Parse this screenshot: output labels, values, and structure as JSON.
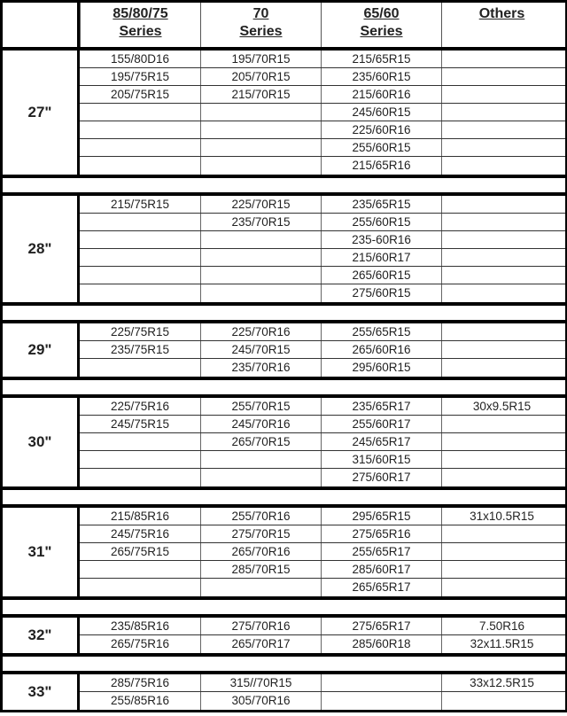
{
  "header": {
    "columns": [
      {
        "line1": "85/80/75",
        "line2": "Series"
      },
      {
        "line1": "70",
        "line2": "Series"
      },
      {
        "line1": "65/60",
        "line2": "Series"
      },
      {
        "line1": "Others",
        "line2": ""
      }
    ]
  },
  "groups": [
    {
      "size": "27\"",
      "rows": [
        [
          "155/80D16",
          "195/70R15",
          "215/65R15",
          ""
        ],
        [
          "195/75R15",
          "205/70R15",
          "235/60R15",
          ""
        ],
        [
          "205/75R15",
          "215/70R15",
          "215/60R16",
          ""
        ],
        [
          "",
          "",
          "245/60R15",
          ""
        ],
        [
          "",
          "",
          "225/60R16",
          ""
        ],
        [
          "",
          "",
          "255/60R15",
          ""
        ],
        [
          "",
          "",
          "215/65R16",
          ""
        ]
      ]
    },
    {
      "size": "28\"",
      "rows": [
        [
          "215/75R15",
          "225/70R15",
          "235/65R15",
          ""
        ],
        [
          "",
          "235/70R15",
          "255/60R15",
          ""
        ],
        [
          "",
          "",
          "235-60R16",
          ""
        ],
        [
          "",
          "",
          "215/60R17",
          ""
        ],
        [
          "",
          "",
          "265/60R15",
          ""
        ],
        [
          "",
          "",
          "275/60R15",
          ""
        ]
      ]
    },
    {
      "size": "29\"",
      "rows": [
        [
          "225/75R15",
          "225/70R16",
          "255/65R15",
          ""
        ],
        [
          "235/75R15",
          "245/70R15",
          "265/60R16",
          ""
        ],
        [
          "",
          "235/70R16",
          "295/60R15",
          ""
        ]
      ]
    },
    {
      "size": "30\"",
      "rows": [
        [
          "225/75R16",
          "255/70R15",
          "235/65R17",
          "30x9.5R15"
        ],
        [
          "245/75R15",
          "245/70R16",
          "255/60R17",
          ""
        ],
        [
          "",
          "265/70R15",
          "245/65R17",
          ""
        ],
        [
          "",
          "",
          "315/60R15",
          ""
        ],
        [
          "",
          "",
          "275/60R17",
          ""
        ]
      ]
    },
    {
      "size": "31\"",
      "rows": [
        [
          "215/85R16",
          "255/70R16",
          "295/65R15",
          "31x10.5R15"
        ],
        [
          "245/75R16",
          "275/70R15",
          "275/65R16",
          ""
        ],
        [
          "265/75R15",
          "265/70R16",
          "255/65R17",
          ""
        ],
        [
          "",
          "285/70R15",
          "285/60R17",
          ""
        ],
        [
          "",
          "",
          "265/65R17",
          ""
        ]
      ]
    },
    {
      "size": "32\"",
      "rows": [
        [
          "235/85R16",
          "275/70R16",
          "275/65R17",
          "7.50R16"
        ],
        [
          "265/75R16",
          "265/70R17",
          "285/60R18",
          "32x11.5R15"
        ]
      ]
    },
    {
      "size": "33\"",
      "rows": [
        [
          "285/75R16",
          "315//70R15",
          "",
          "33x12.5R15"
        ],
        [
          "255/85R16",
          "305/70R16",
          "",
          ""
        ]
      ]
    }
  ]
}
